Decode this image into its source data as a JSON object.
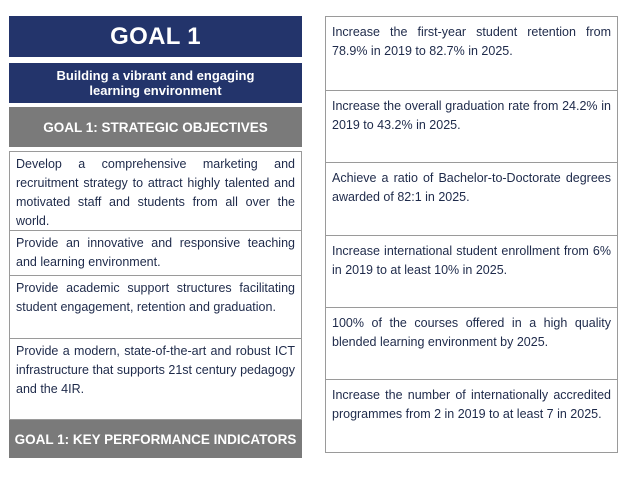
{
  "left": {
    "goal_title": "GOAL 1",
    "goal_subtitle_line1": "Building a vibrant and engaging",
    "goal_subtitle_line2": "learning environment",
    "objectives_heading": "GOAL 1: STRATEGIC OBJECTIVES",
    "objectives": [
      "Develop a comprehensive marketing and recruitment strategy to attract highly talented and motivated staff and students from all over the world.",
      "Provide an innovative and responsive teaching and learning environment.",
      "Provide academic support structures facilitating student engagement, retention and graduation.",
      "Provide a modern, state-of-the-art and robust ICT infrastructure that supports 21st century pedagogy and the 4IR."
    ],
    "kpi_heading": "GOAL 1: KEY PERFORMANCE INDICATORS"
  },
  "kpis": [
    "Increase the first-year student retention from 78.9% in 2019 to 82.7% in 2025.",
    "Increase the overall graduation rate from 24.2% in 2019 to 43.2% in 2025.",
    "Achieve a ratio of Bachelor-to-Doctorate degrees awarded of 82:1 in 2025.",
    "Increase international student enrollment from 6% in 2019 to at least 10% in 2025.",
    "100% of the courses offered in a high quality blended learning environment by 2025.",
    "Increase the number of internationally accredited programmes from 2 in 2019 to at least 7 in 2025."
  ]
}
